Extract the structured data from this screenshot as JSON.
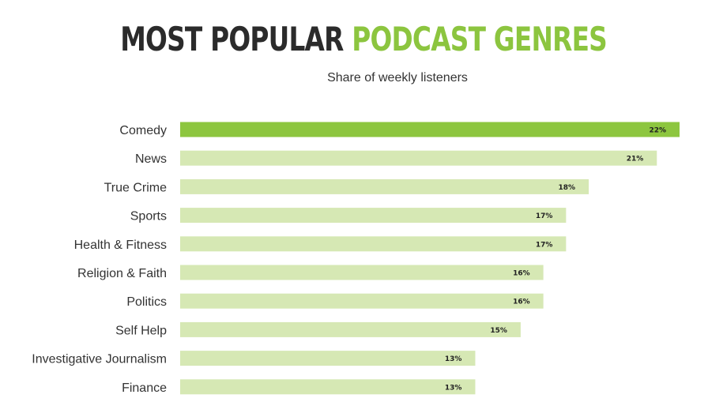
{
  "chart_data": {
    "type": "bar",
    "orientation": "horizontal",
    "title_part1": "MOST POPULAR",
    "title_part2": "PODCAST GENRES",
    "subtitle": "Share of weekly listeners",
    "categories": [
      "Comedy",
      "News",
      "True Crime",
      "Sports",
      "Health & Fitness",
      "Religion & Faith",
      "Politics",
      "Self Help",
      "Investigative Journalism",
      "Finance"
    ],
    "values": [
      22,
      21,
      18,
      17,
      17,
      16,
      16,
      15,
      13,
      13
    ],
    "value_labels": [
      "22%",
      "21%",
      "18%",
      "17%",
      "17%",
      "16%",
      "16%",
      "15%",
      "13%",
      "13%"
    ],
    "unit": "%",
    "xlim": [
      0,
      22
    ],
    "grid": false,
    "legend": "none",
    "colors": {
      "highlight": "#8dc63f",
      "bar": "#d6e8b4",
      "title_accent": "#8cc53f",
      "title_dark": "#2b2b2b"
    },
    "highlight_index": 0
  }
}
